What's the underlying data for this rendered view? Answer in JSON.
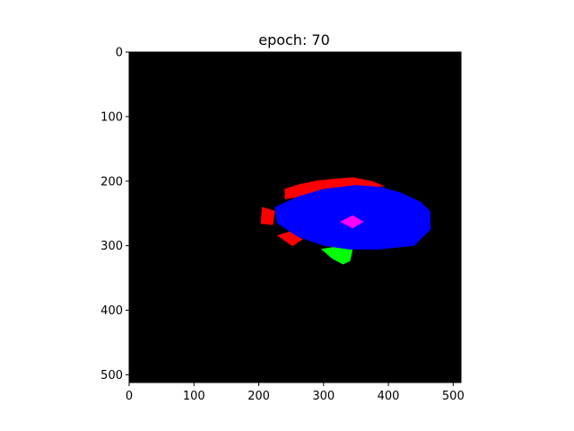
{
  "chart_data": {
    "type": "heatmap",
    "title": "epoch: 70",
    "xlabel": "",
    "ylabel": "",
    "image_size": [
      512,
      512
    ],
    "xlim": [
      0,
      511
    ],
    "ylim": [
      511,
      0
    ],
    "x_ticks": [
      0,
      100,
      200,
      300,
      400,
      500
    ],
    "y_ticks": [
      0,
      100,
      200,
      300,
      400,
      500
    ],
    "grid": false,
    "background_color": "#000000",
    "regions": [
      {
        "color": "#ff0000",
        "polygon": [
          [
            240,
            212
          ],
          [
            262,
            205
          ],
          [
            290,
            199
          ],
          [
            320,
            196
          ],
          [
            345,
            194
          ],
          [
            375,
            200
          ],
          [
            395,
            208
          ],
          [
            355,
            210
          ],
          [
            280,
            222
          ],
          [
            240,
            228
          ]
        ]
      },
      {
        "color": "#ff0000",
        "polygon": [
          [
            205,
            240
          ],
          [
            225,
            246
          ],
          [
            222,
            268
          ],
          [
            203,
            266
          ]
        ]
      },
      {
        "color": "#ff0000",
        "polygon": [
          [
            228,
            284
          ],
          [
            248,
            278
          ],
          [
            268,
            290
          ],
          [
            252,
            301
          ]
        ]
      },
      {
        "color": "#00ff00",
        "polygon": [
          [
            296,
            305
          ],
          [
            315,
            302
          ],
          [
            345,
            306
          ],
          [
            341,
            324
          ],
          [
            330,
            329
          ],
          [
            313,
            320
          ]
        ]
      },
      {
        "color": "#0000ff",
        "polygon": [
          [
            225,
            240
          ],
          [
            260,
            224
          ],
          [
            300,
            212
          ],
          [
            350,
            206
          ],
          [
            390,
            209
          ],
          [
            420,
            218
          ],
          [
            450,
            232
          ],
          [
            465,
            247
          ],
          [
            465,
            275
          ],
          [
            440,
            300
          ],
          [
            385,
            306
          ],
          [
            340,
            306
          ],
          [
            300,
            300
          ],
          [
            260,
            286
          ],
          [
            228,
            265
          ]
        ]
      },
      {
        "color": "#ff00ff",
        "polygon": [
          [
            325,
            263
          ],
          [
            345,
            253
          ],
          [
            362,
            263
          ],
          [
            345,
            273
          ]
        ]
      }
    ]
  }
}
